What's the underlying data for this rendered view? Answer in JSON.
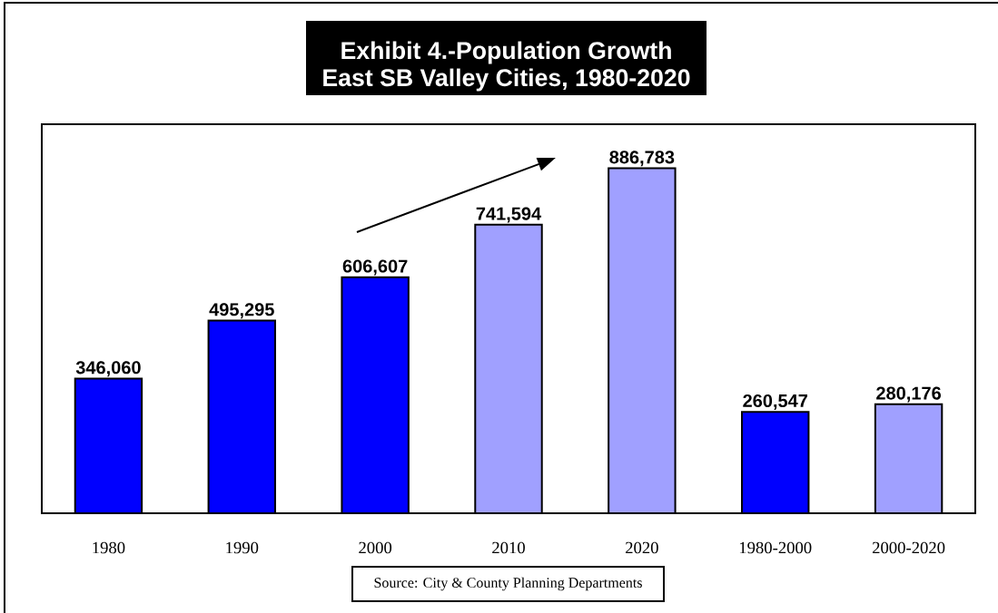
{
  "chart_data": {
    "type": "bar",
    "title": "Exhibit 4.-Population Growth",
    "subtitle": "East SB Valley Cities, 1980-2020",
    "categories": [
      "1980",
      "1990",
      "2000",
      "2010",
      "2020",
      "1980-2000",
      "2000-2020"
    ],
    "values": [
      346060,
      495295,
      606607,
      741594,
      886783,
      260547,
      280176
    ],
    "colors": [
      "#0000ff",
      "#0000ff",
      "#0000ff",
      "#a0a0ff",
      "#a0a0ff",
      "#0000ff",
      "#a0a0ff"
    ],
    "value_labels": [
      "346,060",
      "495,295",
      "606,607",
      "741,594",
      "886,783",
      "260,547",
      "280,176"
    ],
    "ylim": [
      0,
      1000000
    ],
    "tick_labels": "x",
    "annotations": [
      "Source: City & County Planning Departments"
    ]
  }
}
